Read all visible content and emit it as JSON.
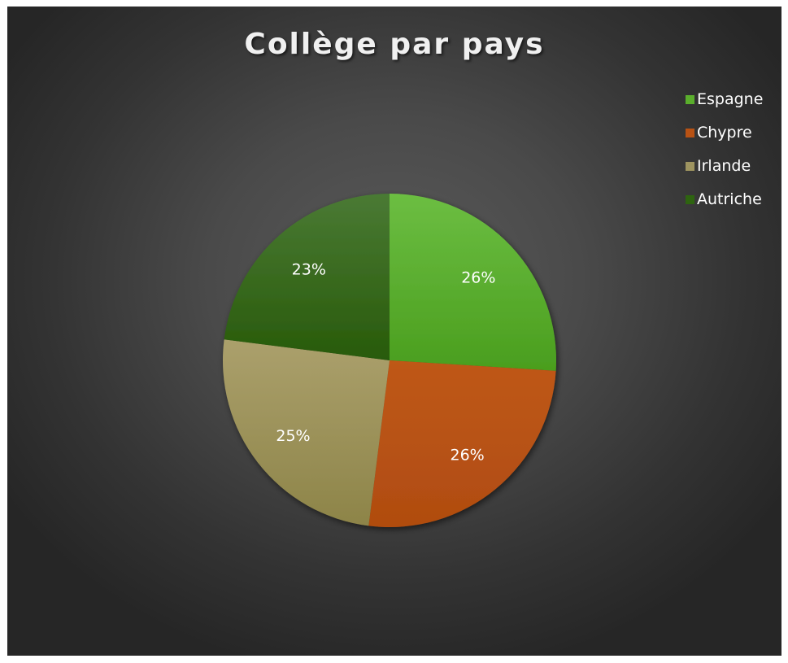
{
  "chart_data": {
    "type": "pie",
    "title": "Collège par pays",
    "categories": [
      "Espagne",
      "Chypre",
      "Irlande",
      "Autriche"
    ],
    "values": [
      26,
      26,
      25,
      23
    ],
    "data_labels": [
      "26%",
      "26%",
      "25%",
      "23%"
    ],
    "colors": [
      "#5aae2c",
      "#b85214",
      "#9e9460",
      "#2e6410"
    ],
    "legend_position": "top-right"
  }
}
